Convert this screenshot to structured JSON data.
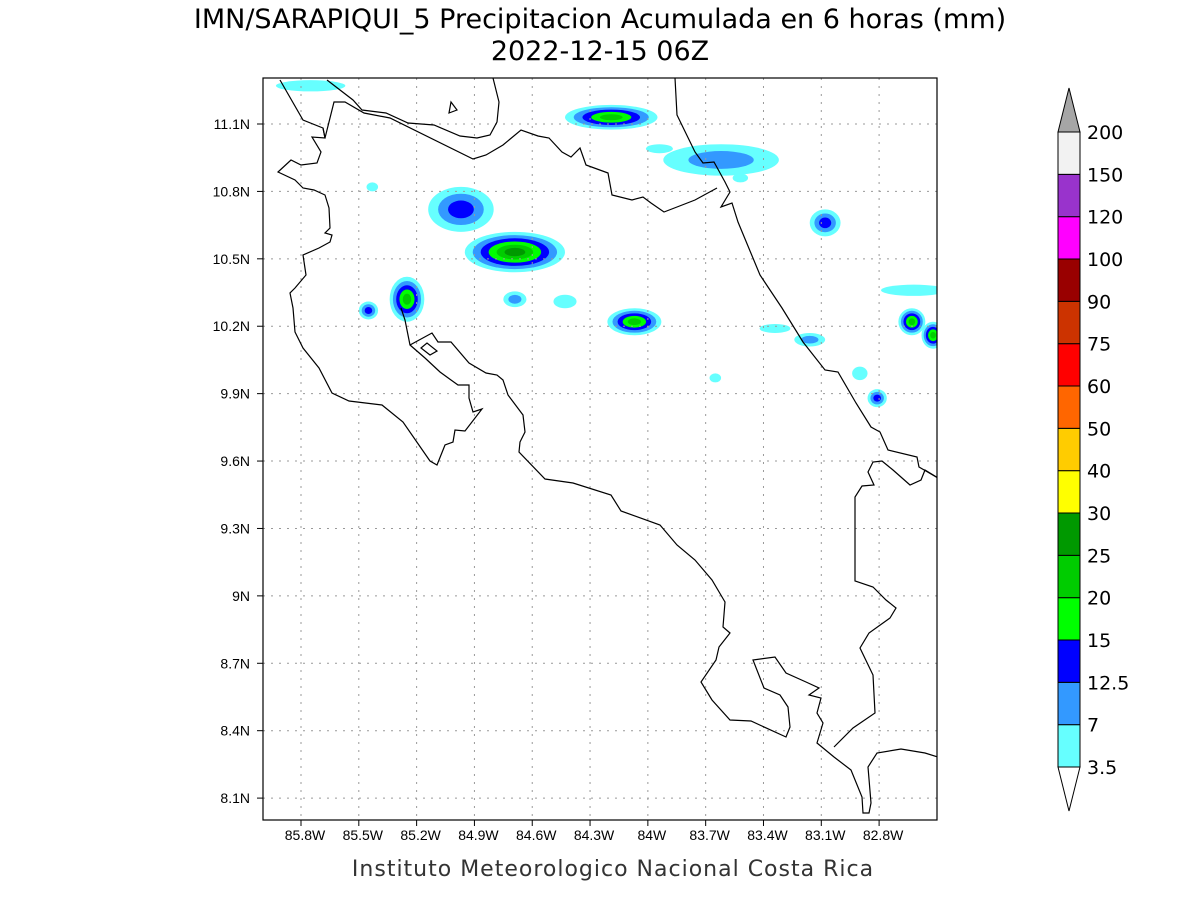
{
  "title": {
    "line1": "IMN/SARAPIQUI_5 Precipitacion Acumulada en 6 horas (mm)",
    "line2": "2022-12-15 06Z"
  },
  "footer": "Instituto Meteorologico Nacional Costa Rica",
  "chart_data": {
    "type": "heatmap",
    "variable": "Precipitacion Acumulada en 6 horas (mm)",
    "xlim": [
      -85.99,
      -82.5
    ],
    "ylim": [
      8.0,
      11.3
    ],
    "grid": true,
    "x_ticks": [
      {
        "value": -85.8,
        "label": "85.8W"
      },
      {
        "value": -85.5,
        "label": "85.5W"
      },
      {
        "value": -85.2,
        "label": "85.2W"
      },
      {
        "value": -84.9,
        "label": "84.9W"
      },
      {
        "value": -84.6,
        "label": "84.6W"
      },
      {
        "value": -84.3,
        "label": "84.3W"
      },
      {
        "value": -84.0,
        "label": "84W"
      },
      {
        "value": -83.7,
        "label": "83.7W"
      },
      {
        "value": -83.4,
        "label": "83.4W"
      },
      {
        "value": -83.1,
        "label": "83.1W"
      },
      {
        "value": -82.8,
        "label": "82.8W"
      }
    ],
    "y_ticks": [
      {
        "value": 11.1,
        "label": "11.1N"
      },
      {
        "value": 10.8,
        "label": "10.8N"
      },
      {
        "value": 10.5,
        "label": "10.5N"
      },
      {
        "value": 10.2,
        "label": "10.2N"
      },
      {
        "value": 9.9,
        "label": "9.9N"
      },
      {
        "value": 9.6,
        "label": "9.6N"
      },
      {
        "value": 9.3,
        "label": "9.3N"
      },
      {
        "value": 9.0,
        "label": "9N"
      },
      {
        "value": 8.7,
        "label": "8.7N"
      },
      {
        "value": 8.4,
        "label": "8.4N"
      },
      {
        "value": 8.1,
        "label": "8.1N"
      }
    ],
    "colorbar": {
      "placement": "right",
      "labels": [
        "3.5",
        "7",
        "12.5",
        "15",
        "20",
        "25",
        "30",
        "40",
        "50",
        "60",
        "75",
        "90",
        "100",
        "120",
        "150",
        "200"
      ],
      "colors": [
        "#66ffff",
        "#3399ff",
        "#0000ff",
        "#00ff00",
        "#00cc00",
        "#009900",
        "#ffff00",
        "#ffcc00",
        "#ff6600",
        "#ff0000",
        "#cc3300",
        "#990000",
        "#ff00ff",
        "#9933cc",
        "#f2f2f2"
      ],
      "over_color": "#a6a6a6",
      "under_color": "#ffffff"
    },
    "precip_cells": [
      {
        "lon": -84.19,
        "lat": 11.13,
        "rlon": 0.24,
        "rlat": 0.055,
        "max_mm": 20
      },
      {
        "lon": -84.69,
        "lat": 10.53,
        "rlon": 0.26,
        "rlat": 0.09,
        "max_mm": 25
      },
      {
        "lon": -85.25,
        "lat": 10.32,
        "rlon": 0.09,
        "rlat": 0.1,
        "max_mm": 20
      },
      {
        "lon": -84.07,
        "lat": 10.22,
        "rlon": 0.14,
        "rlat": 0.06,
        "max_mm": 20
      },
      {
        "lon": -84.97,
        "lat": 10.72,
        "rlon": 0.17,
        "rlat": 0.1,
        "max_mm": 12.5
      },
      {
        "lon": -83.62,
        "lat": 10.94,
        "rlon": 0.3,
        "rlat": 0.07,
        "max_mm": 7
      },
      {
        "lon": -83.08,
        "lat": 10.66,
        "rlon": 0.08,
        "rlat": 0.06,
        "max_mm": 12.5
      },
      {
        "lon": -82.63,
        "lat": 10.22,
        "rlon": 0.07,
        "rlat": 0.06,
        "max_mm": 20
      },
      {
        "lon": -82.52,
        "lat": 10.16,
        "rlon": 0.06,
        "rlat": 0.06,
        "max_mm": 20
      },
      {
        "lon": -82.81,
        "lat": 9.88,
        "rlon": 0.05,
        "rlat": 0.04,
        "max_mm": 12.5
      },
      {
        "lon": -85.45,
        "lat": 10.27,
        "rlon": 0.05,
        "rlat": 0.04,
        "max_mm": 12.5
      },
      {
        "lon": -85.75,
        "lat": 11.27,
        "rlon": 0.18,
        "rlat": 0.025,
        "max_mm": 3.5
      },
      {
        "lon": -84.69,
        "lat": 10.32,
        "rlon": 0.06,
        "rlat": 0.035,
        "max_mm": 7
      },
      {
        "lon": -83.16,
        "lat": 10.14,
        "rlon": 0.08,
        "rlat": 0.03,
        "max_mm": 7
      },
      {
        "lon": -82.62,
        "lat": 10.36,
        "rlon": 0.17,
        "rlat": 0.025,
        "max_mm": 3.5
      },
      {
        "lon": -83.34,
        "lat": 10.19,
        "rlon": 0.08,
        "rlat": 0.02,
        "max_mm": 3.5
      },
      {
        "lon": -83.94,
        "lat": 10.99,
        "rlon": 0.07,
        "rlat": 0.02,
        "max_mm": 3.5
      },
      {
        "lon": -83.65,
        "lat": 9.97,
        "rlon": 0.03,
        "rlat": 0.02,
        "max_mm": 3.5
      },
      {
        "lon": -84.43,
        "lat": 10.31,
        "rlon": 0.06,
        "rlat": 0.03,
        "max_mm": 3.5
      },
      {
        "lon": -85.43,
        "lat": 10.82,
        "rlon": 0.03,
        "rlat": 0.02,
        "max_mm": 3.5
      },
      {
        "lon": -83.52,
        "lat": 10.86,
        "rlon": 0.04,
        "rlat": 0.02,
        "max_mm": 3.5
      },
      {
        "lon": -82.9,
        "lat": 9.99,
        "rlon": 0.04,
        "rlat": 0.03,
        "max_mm": 3.5
      }
    ]
  }
}
